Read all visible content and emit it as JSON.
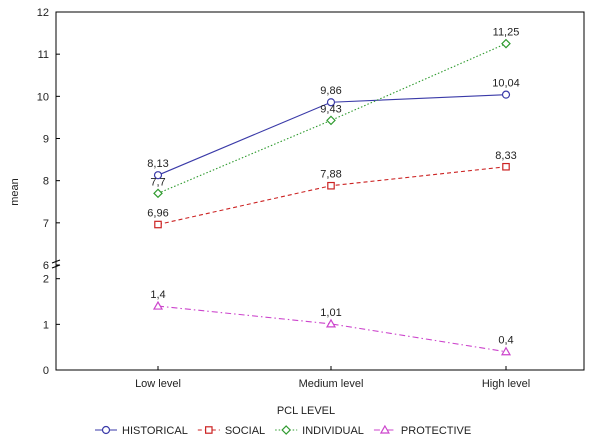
{
  "chart_data": {
    "type": "line",
    "title": "",
    "xlabel": "PCL LEVEL",
    "ylabel": "mean",
    "categories": [
      "Low level",
      "Medium level",
      "High level"
    ],
    "y_axis_upper": {
      "range": [
        6,
        12
      ],
      "ticks": [
        "6",
        "7",
        "8",
        "9",
        "10",
        "11",
        "12"
      ]
    },
    "y_axis_lower": {
      "range": [
        0,
        2.3
      ],
      "ticks": [
        "0",
        "1",
        "2"
      ]
    },
    "broken_axis": true,
    "grid": false,
    "legend_position": "bottom",
    "series": [
      {
        "name": "HISTORICAL",
        "values": [
          8.13,
          9.86,
          10.04
        ],
        "labels": [
          "8,13",
          "9,86",
          "10,04"
        ],
        "color": "#3a3aa8",
        "dash": "solid",
        "marker": "circle",
        "segment": "upper"
      },
      {
        "name": "SOCIAL",
        "values": [
          6.96,
          7.88,
          8.33
        ],
        "labels": [
          "6,96",
          "7,88",
          "8,33"
        ],
        "color": "#cc2222",
        "dash": "dashed",
        "marker": "square",
        "segment": "upper"
      },
      {
        "name": "INDIVIDUAL",
        "values": [
          7.7,
          9.43,
          11.25
        ],
        "labels": [
          "7,7",
          "9,43",
          "11,25"
        ],
        "color": "#2e9a2e",
        "dash": "dotted",
        "marker": "diamond",
        "segment": "upper"
      },
      {
        "name": "PROTECTIVE",
        "values": [
          1.4,
          1.01,
          0.4
        ],
        "labels": [
          "1,4",
          "1,01",
          "0,4"
        ],
        "color": "#cc44cc",
        "dash": "dashdot",
        "marker": "triangle",
        "segment": "lower"
      }
    ]
  }
}
